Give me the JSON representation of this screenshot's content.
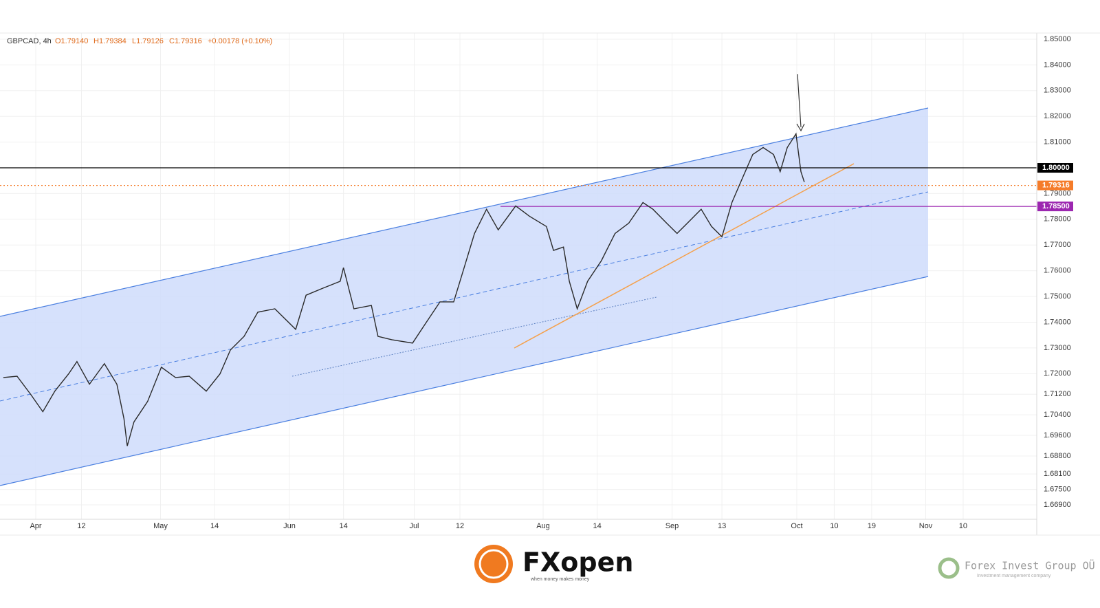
{
  "chart_data": {
    "type": "line",
    "title": "GBPCAD, 4h",
    "ohlc": [
      "O1.79140",
      "H1.79384",
      "L1.79126",
      "C1.79316",
      "+0.00178 (+0.10%)"
    ],
    "series": [
      {
        "name": "GBPCAD",
        "color": "#2a2a2a",
        "x": [
          -7.8,
          -4.5,
          -1.2,
          1.7,
          4.6,
          7.9,
          9.9,
          12.9,
          16.5,
          19.5,
          21.2,
          22,
          23.6,
          26.9,
          30.2,
          33.6,
          36.9,
          41,
          44.3,
          46.8,
          50.1,
          53.4,
          57.5,
          62.5,
          65,
          69,
          73.2,
          74,
          76.5,
          80.7,
          82.3,
          85.6,
          90.6,
          93.9,
          97.2,
          100.5,
          103,
          105.5,
          108.4,
          111.2,
          115.4,
          118.7,
          122.8,
          124.5,
          126.9,
          128.3,
          130.2,
          132.7,
          136,
          139.3,
          142.6,
          146,
          148.4,
          151.7,
          154.2,
          156.7,
          160,
          162.5,
          165,
          167.4,
          169.9,
          172.4,
          174.9,
          177.4,
          179,
          180.7,
          182.8,
          184,
          184.8
        ],
        "values": [
          1.7185,
          1.719,
          1.7119,
          1.7052,
          1.7132,
          1.7199,
          1.7247,
          1.7159,
          1.7239,
          1.7159,
          1.7025,
          1.6919,
          1.7012,
          1.7092,
          1.7225,
          1.7185,
          1.719,
          1.7132,
          1.7199,
          1.7292,
          1.7345,
          1.7439,
          1.7452,
          1.7372,
          1.7505,
          1.7532,
          1.7559,
          1.7612,
          1.7452,
          1.7465,
          1.7345,
          1.7332,
          1.7319,
          1.7399,
          1.7479,
          1.7479,
          1.7612,
          1.7745,
          1.7839,
          1.7759,
          1.7852,
          1.7812,
          1.7772,
          1.7679,
          1.7692,
          1.7559,
          1.7452,
          1.7559,
          1.7639,
          1.7745,
          1.7785,
          1.7865,
          1.7839,
          1.7785,
          1.7745,
          1.7785,
          1.7839,
          1.7772,
          1.7732,
          1.7865,
          1.7959,
          1.8052,
          1.8079,
          1.8052,
          1.7985,
          1.8079,
          1.8132,
          1.7985,
          1.7945
        ]
      }
    ],
    "levels": [
      {
        "value": 1.8,
        "label": "1.80000",
        "color": "#000000"
      },
      {
        "value": 1.79316,
        "label": "1.79316",
        "color": "#f57c2a"
      },
      {
        "value": 1.785,
        "label": "1.78500",
        "color": "#9c27b0"
      }
    ],
    "ylim": [
      1.6634,
      1.8524
    ],
    "yticks": [
      {
        "value": 1.85,
        "label": "1.85000"
      },
      {
        "value": 1.84,
        "label": "1.84000"
      },
      {
        "value": 1.83,
        "label": "1.83000"
      },
      {
        "value": 1.82,
        "label": "1.82000"
      },
      {
        "value": 1.81,
        "label": "1.81000"
      },
      {
        "value": 1.79,
        "label": "1.79000"
      },
      {
        "value": 1.78,
        "label": "1.78000"
      },
      {
        "value": 1.77,
        "label": "1.77000"
      },
      {
        "value": 1.76,
        "label": "1.76000"
      },
      {
        "value": 1.75,
        "label": "1.75000"
      },
      {
        "value": 1.74,
        "label": "1.74000"
      },
      {
        "value": 1.73,
        "label": "1.73000"
      },
      {
        "value": 1.72,
        "label": "1.72000"
      },
      {
        "value": 1.712,
        "label": "1.71200"
      },
      {
        "value": 1.704,
        "label": "1.70400"
      },
      {
        "value": 1.696,
        "label": "1.69600"
      },
      {
        "value": 1.688,
        "label": "1.68800"
      },
      {
        "value": 1.681,
        "label": "1.68100"
      },
      {
        "value": 1.675,
        "label": "1.67500"
      },
      {
        "value": 1.669,
        "label": "1.66900"
      }
    ],
    "xlim": [
      -8.6,
      240.7
    ],
    "xticks": [
      {
        "value": 0,
        "label": "Apr"
      },
      {
        "value": 11,
        "label": "12"
      },
      {
        "value": 30,
        "label": "May"
      },
      {
        "value": 43,
        "label": "14"
      },
      {
        "value": 61,
        "label": "Jun"
      },
      {
        "value": 74,
        "label": "14"
      },
      {
        "value": 91,
        "label": "Jul"
      },
      {
        "value": 102,
        "label": "12"
      },
      {
        "value": 122,
        "label": "Aug"
      },
      {
        "value": 135,
        "label": "14"
      },
      {
        "value": 153,
        "label": "Sep"
      },
      {
        "value": 165,
        "label": "13"
      },
      {
        "value": 183,
        "label": "Oct"
      },
      {
        "value": 192,
        "label": "10"
      },
      {
        "value": 201,
        "label": "19"
      },
      {
        "value": 214,
        "label": "Nov"
      },
      {
        "value": 223,
        "label": "10"
      }
    ],
    "grid": true
  },
  "footer": {
    "brand": "FXopen",
    "tagline": "when money makes money",
    "company": "Forex Invest Group OÜ",
    "company_sub": "Investment management company"
  }
}
